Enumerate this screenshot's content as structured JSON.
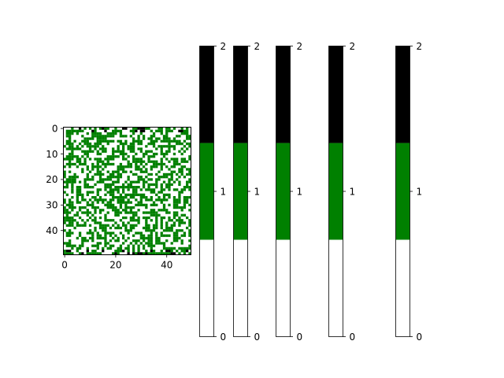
{
  "chart_data": [
    {
      "type": "heatmap",
      "description_values": "50x50 grid with cell values in {0,1,2}",
      "rows": 50,
      "cols": 50,
      "value_levels": [
        0,
        1,
        2
      ],
      "colors": {
        "0": "#ffffff",
        "1": "#008000",
        "2": "#000000"
      },
      "x_ticks": [
        0,
        20,
        40
      ],
      "y_ticks": [
        0,
        10,
        20,
        30,
        40
      ],
      "xlim": [
        -0.5,
        49.5
      ],
      "ylim": [
        49.5,
        -0.5
      ],
      "green_probability": 0.5,
      "black_edge_rows": [
        0,
        1,
        48,
        49
      ],
      "black_probability_edge": 0.2
    },
    {
      "type": "colorbar",
      "colors": [
        "#ffffff",
        "#008000",
        "#000000"
      ],
      "boundaries": [
        0,
        0.667,
        1.333,
        2
      ],
      "ticks": [
        0,
        1,
        2
      ],
      "ylim": [
        0,
        2
      ],
      "count": 5
    }
  ]
}
